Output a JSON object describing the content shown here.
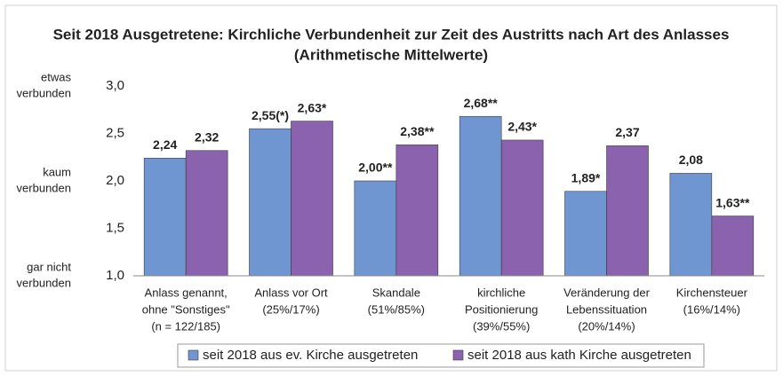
{
  "chart_data": {
    "type": "bar",
    "title": "Seit 2018 Ausgetretene: Kirchliche Verbundenheit zur Zeit des Austritts nach Art des Anlasses",
    "subtitle": "(Arithmetische Mittelwerte)",
    "categories": [
      [
        "Anlass genannt,",
        "ohne \"Sonstiges\"",
        "(n = 122/185)"
      ],
      [
        "Anlass vor Ort",
        "(25%/17%)"
      ],
      [
        "Skandale",
        "(51%/85%)"
      ],
      [
        "kirchliche",
        "Positionierung",
        "(39%/55%)"
      ],
      [
        "Veränderung der",
        "Lebenssituation",
        "(20%/14%)"
      ],
      [
        "Kirchensteuer",
        "(16%/14%)"
      ]
    ],
    "series": [
      {
        "name": "seit 2018 aus ev. Kirche ausgetreten",
        "color": "#7096d1",
        "values": [
          2.24,
          2.55,
          2.0,
          2.68,
          1.89,
          2.08
        ],
        "value_labels": [
          "2,24",
          "2,55(*)",
          "2,00**",
          "2,68**",
          "1,89*",
          "2,08"
        ]
      },
      {
        "name": "seit 2018 aus kath Kirche ausgetreten",
        "color": "#8b62ae",
        "values": [
          2.32,
          2.63,
          2.38,
          2.43,
          2.37,
          1.63
        ],
        "value_labels": [
          "2,32",
          "2,63*",
          "2,38**",
          "2,43*",
          "2,37",
          "1,63**"
        ]
      }
    ],
    "ylim": [
      1,
      3
    ],
    "yticks": [
      {
        "value": 1,
        "label": "1,0"
      },
      {
        "value": 1.5,
        "label": "1,5"
      },
      {
        "value": 2,
        "label": "2,0"
      },
      {
        "value": 2.5,
        "label": "2,5"
      },
      {
        "value": 3,
        "label": "3,0"
      }
    ],
    "y_scale_labels": [
      {
        "value": 3,
        "label": [
          "etwas",
          "verbunden"
        ]
      },
      {
        "value": 2,
        "label": [
          "kaum",
          "verbunden"
        ]
      },
      {
        "value": 1,
        "label": [
          "gar nicht",
          "verbunden"
        ]
      }
    ],
    "grid": false
  }
}
